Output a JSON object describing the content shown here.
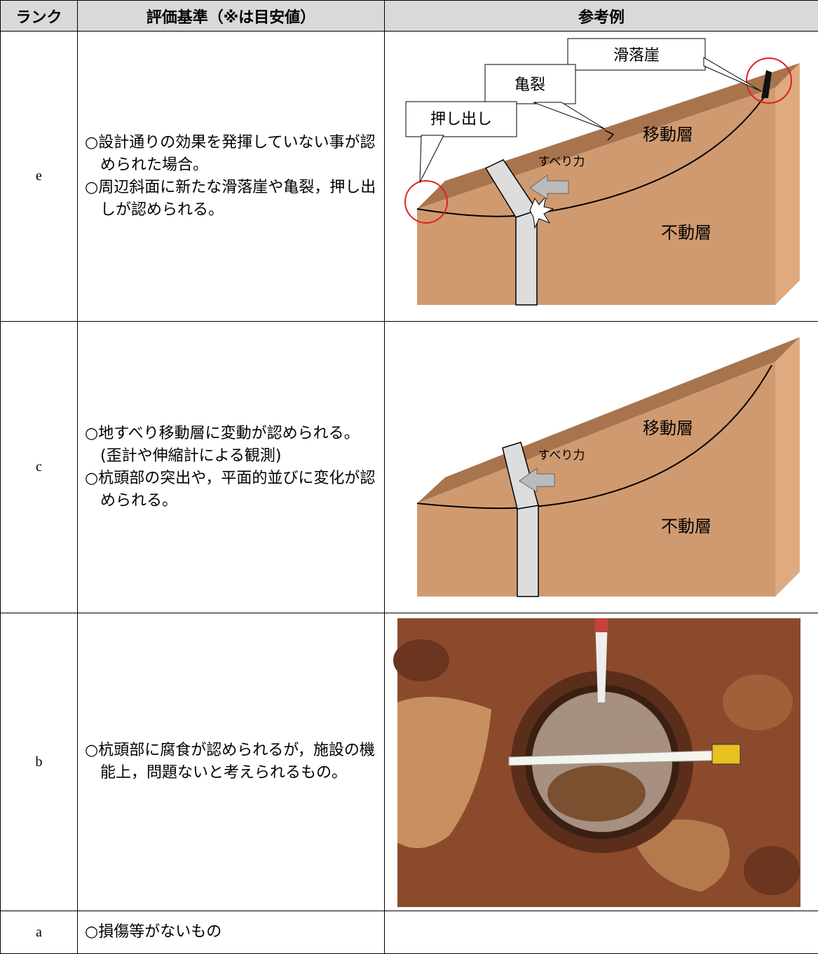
{
  "table": {
    "headers": [
      "ランク",
      "評価基準（※は目安値）",
      "参考例"
    ],
    "rows": [
      {
        "rank": "e",
        "criteria": [
          "○設計通りの効果を発揮していない事が認められた場合。",
          "○周辺斜面に新たな滑落崖や亀裂，押し出しが認められる。"
        ],
        "example_labels": {
          "scarp": "滑落崖",
          "crack": "亀裂",
          "bulge": "押し出し",
          "moving": "移動層",
          "force": "すべり力",
          "stable": "不動層"
        }
      },
      {
        "rank": "c",
        "criteria": [
          "○地すべり移動層に変動が認められる。(歪計や伸縮計による観測)",
          "○杭頭部の突出や，平面的並びに変化が認められる。"
        ],
        "example_labels": {
          "moving": "移動層",
          "force": "すべり力",
          "stable": "不動層"
        }
      },
      {
        "rank": "b",
        "criteria": [
          "○杭頭部に腐食が認められるが，施設の機能上，問題ないと考えられるもの。"
        ]
      },
      {
        "rank": "a",
        "criteria": [
          "○損傷等がないもの"
        ]
      }
    ]
  }
}
